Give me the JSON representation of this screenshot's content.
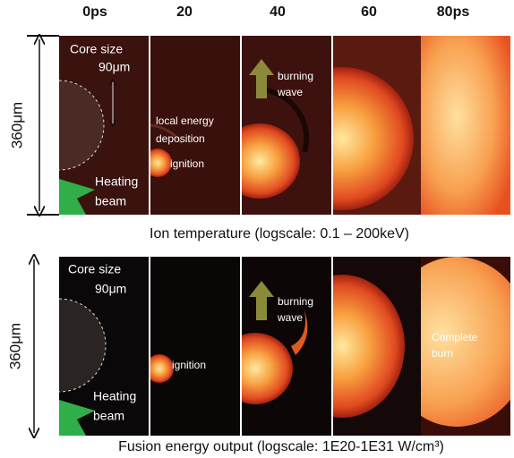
{
  "column_labels": [
    "0ps",
    "20",
    "40",
    "60",
    "80ps"
  ],
  "rows": [
    {
      "scale_label": "360μm",
      "core_size": "Core size",
      "core_dim": "90μm",
      "deposition": [
        "local energy",
        "deposition"
      ],
      "ignition": "ignition",
      "burning_wave": [
        "burning",
        "wave"
      ],
      "heating_beam": [
        "Heating",
        "beam"
      ],
      "caption": "Ion temperature (logscale: 0.1 – 200keV)"
    },
    {
      "scale_label": "360μm",
      "core_size": "Core size",
      "core_dim": "90μm",
      "ignition": "ignition",
      "burning_wave": [
        "burning",
        "wave"
      ],
      "complete_burn": [
        "Complete",
        "burn"
      ],
      "heating_beam": [
        "Heating",
        "beam"
      ],
      "caption": "Fusion energy output (logscale: 1E20-1E31 W/cm³)"
    }
  ]
}
